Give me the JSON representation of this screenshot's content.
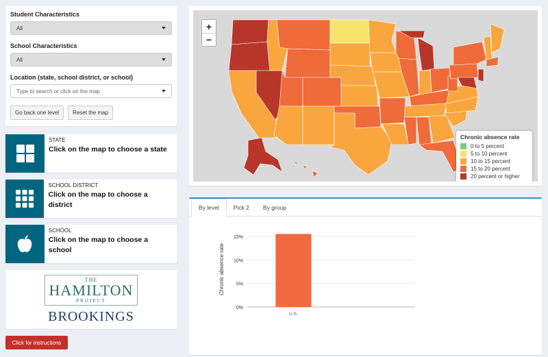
{
  "filters": {
    "student_label": "Student Characteristics",
    "student_value": "All",
    "school_label": "School Characteristics",
    "school_value": "All",
    "location_label": "Location (state, school district, or school)",
    "location_placeholder": "Type to search or click on the map",
    "back_button": "Go back one level",
    "reset_button": "Reset the map"
  },
  "cards": [
    {
      "caption": "STATE",
      "text": "Click on the map to choose a state",
      "icon": "grid-2x2-icon"
    },
    {
      "caption": "SCHOOL DISTRICT",
      "text": "Click on the map to choose a district",
      "icon": "grid-3x3-icon"
    },
    {
      "caption": "SCHOOL",
      "text": "Click on the map to choose a school",
      "icon": "apple-icon"
    }
  ],
  "logo": {
    "the": "THE",
    "hamilton": "HAMILTON",
    "project": "PROJECT",
    "brookings": "BROOKINGS"
  },
  "instructions_button": "Click for instructions",
  "map": {
    "zoom_in": "+",
    "zoom_out": "−",
    "legend": {
      "title": "Chronic absence rate",
      "items": [
        {
          "label": "0 to 5 percent",
          "color": "#7fc97f"
        },
        {
          "label": "5 to 10 percent",
          "color": "#f7e36b"
        },
        {
          "label": "10 to 15 percent",
          "color": "#f9a63f"
        },
        {
          "label": "15 to 20 percent",
          "color": "#ef6b3a"
        },
        {
          "label": "20 percent or higher",
          "color": "#b8352a"
        }
      ]
    }
  },
  "tabs": [
    {
      "label": "By level",
      "active": true
    },
    {
      "label": "Pick 2",
      "active": false
    },
    {
      "label": "By group",
      "active": false
    }
  ],
  "chart_data": {
    "type": "bar",
    "categories": [
      "U.S."
    ],
    "values": [
      15.5
    ],
    "ylabel": "Chronic absence rate",
    "xlabel": "",
    "ylim": [
      0,
      16
    ],
    "yticks": [
      "0%",
      "5%",
      "10%",
      "15%"
    ],
    "ytick_values": [
      0,
      5,
      10,
      15
    ],
    "bar_color": "#f26a3f",
    "grid": true
  }
}
